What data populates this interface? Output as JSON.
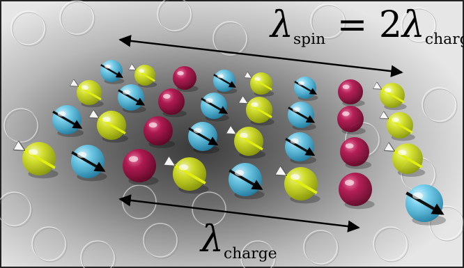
{
  "labels": {
    "lambda": "λ",
    "spin_sub": "spin",
    "equals_two": " = 2",
    "charge_sub": "charge"
  },
  "colors": {
    "spin_cyan": "#58c6e6",
    "spin_yellow": "#d6e520",
    "charge_red": "#b01048",
    "arrow": "#000000",
    "background": "#bdbdbd"
  },
  "spheres": [
    {
      "kind": "cyan",
      "arrow": "black"
    },
    {
      "kind": "yellow",
      "arrow": "yellow"
    },
    {
      "kind": "red"
    },
    {
      "kind": "cyan",
      "arrow": "black"
    },
    {
      "kind": "yellow",
      "arrow": "yellow"
    },
    {
      "kind": "cyan",
      "arrow": "black"
    },
    {
      "kind": "red"
    },
    {
      "kind": "yellow",
      "arrow": "yellow"
    },
    {
      "kind": "yellow",
      "arrow": "yellow"
    },
    {
      "kind": "cyan",
      "arrow": "black"
    },
    {
      "kind": "red"
    },
    {
      "kind": "cyan",
      "arrow": "black"
    },
    {
      "kind": "yellow",
      "arrow": "yellow"
    },
    {
      "kind": "cyan",
      "arrow": "black"
    },
    {
      "kind": "red"
    },
    {
      "kind": "yellow",
      "arrow": "yellow"
    },
    {
      "kind": "cyan",
      "arrow": "black"
    },
    {
      "kind": "yellow",
      "arrow": "yellow"
    },
    {
      "kind": "cyan",
      "arrow": "black"
    },
    {
      "kind": "red"
    },
    {
      "kind": "yellow",
      "arrow": "yellow"
    },
    {
      "kind": "cyan",
      "arrow": "black"
    },
    {
      "kind": "yellow",
      "arrow": "yellow"
    },
    {
      "kind": "cyan",
      "arrow": "black"
    },
    {
      "kind": "red"
    },
    {
      "kind": "cyan",
      "arrow": "black"
    },
    {
      "kind": "yellow",
      "arrow": "yellow"
    },
    {
      "kind": "yellow",
      "arrow": "yellow"
    },
    {
      "kind": "cyan",
      "arrow": "black"
    },
    {
      "kind": "cyan",
      "arrow": "black"
    },
    {
      "kind": "red"
    },
    {
      "kind": "red"
    },
    {
      "kind": "yellow",
      "arrow": "yellow"
    },
    {
      "kind": "cyan",
      "arrow": "black"
    }
  ]
}
